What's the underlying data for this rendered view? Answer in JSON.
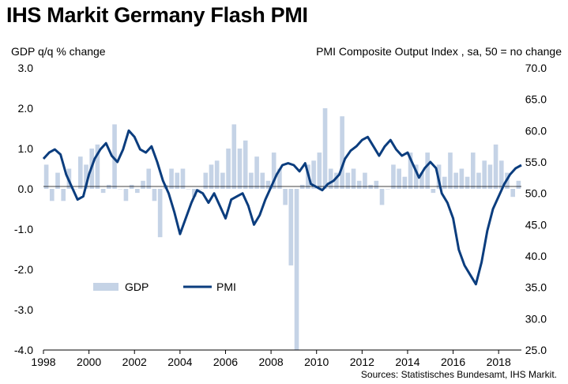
{
  "title": "IHS Markit Germany Flash PMI",
  "left_axis_label": "GDP q/q % change",
  "right_axis_label": "PMI Composite Output Index , sa, 50 = no change",
  "source": "Sources: Statistisches Bundesamt, IHS Markit.",
  "colors": {
    "gdp_bar": "#c5d3e6",
    "pmi_line": "#0b3d7e"
  },
  "chart_data": {
    "type": "bar+line",
    "legend": [
      "GDP",
      "PMI"
    ],
    "legend_position": "bottom-left",
    "grid": false,
    "x_ticks": [
      "1998",
      "2000",
      "2002",
      "2004",
      "2006",
      "2008",
      "2010",
      "2012",
      "2014",
      "2016",
      "2018"
    ],
    "y_left_ticks": [
      "3.0",
      "2.0",
      "1.0",
      "0.0",
      "-1.0",
      "-2.0",
      "-3.0",
      "-4.0"
    ],
    "y_left_range": [
      -4.0,
      3.0
    ],
    "y_right_ticks": [
      "70.0",
      "65.0",
      "60.0",
      "55.0",
      "50.0",
      "45.0",
      "40.0",
      "35.0",
      "30.0",
      "25.0"
    ],
    "y_right_range": [
      25.0,
      70.0
    ],
    "x_range": [
      1998.0,
      2019.0
    ],
    "series": [
      {
        "name": "GDP",
        "type": "bar",
        "axis": "left",
        "points": [
          [
            1998.0,
            0.6
          ],
          [
            1998.25,
            -0.3
          ],
          [
            1998.5,
            0.4
          ],
          [
            1998.75,
            -0.3
          ],
          [
            1999.0,
            0.5
          ],
          [
            1999.25,
            0.0
          ],
          [
            1999.5,
            0.8
          ],
          [
            1999.75,
            0.6
          ],
          [
            2000.0,
            1.0
          ],
          [
            2000.25,
            1.1
          ],
          [
            2000.5,
            -0.1
          ],
          [
            2000.75,
            0.1
          ],
          [
            2001.0,
            1.6
          ],
          [
            2001.25,
            0.0
          ],
          [
            2001.5,
            -0.3
          ],
          [
            2001.75,
            0.1
          ],
          [
            2002.0,
            -0.1
          ],
          [
            2002.25,
            0.2
          ],
          [
            2002.5,
            0.5
          ],
          [
            2002.75,
            -0.3
          ],
          [
            2003.0,
            -1.2
          ],
          [
            2003.25,
            0.1
          ],
          [
            2003.5,
            0.5
          ],
          [
            2003.75,
            0.4
          ],
          [
            2004.0,
            0.5
          ],
          [
            2004.25,
            0.0
          ],
          [
            2004.5,
            -0.2
          ],
          [
            2004.75,
            0.0
          ],
          [
            2005.0,
            0.4
          ],
          [
            2005.25,
            0.6
          ],
          [
            2005.5,
            0.7
          ],
          [
            2005.75,
            0.4
          ],
          [
            2006.0,
            1.0
          ],
          [
            2006.25,
            1.6
          ],
          [
            2006.5,
            1.0
          ],
          [
            2006.75,
            1.2
          ],
          [
            2007.0,
            0.4
          ],
          [
            2007.25,
            0.8
          ],
          [
            2007.5,
            0.4
          ],
          [
            2007.75,
            0.2
          ],
          [
            2008.0,
            0.9
          ],
          [
            2008.25,
            0.5
          ],
          [
            2008.5,
            -0.4
          ],
          [
            2008.75,
            -1.9
          ],
          [
            2009.0,
            -4.0
          ],
          [
            2009.25,
            0.1
          ],
          [
            2009.5,
            0.6
          ],
          [
            2009.75,
            0.7
          ],
          [
            2010.0,
            0.9
          ],
          [
            2010.25,
            2.0
          ],
          [
            2010.5,
            0.5
          ],
          [
            2010.75,
            0.4
          ],
          [
            2011.0,
            1.8
          ],
          [
            2011.25,
            0.4
          ],
          [
            2011.5,
            0.5
          ],
          [
            2011.75,
            0.2
          ],
          [
            2012.0,
            0.4
          ],
          [
            2012.25,
            0.1
          ],
          [
            2012.5,
            0.2
          ],
          [
            2012.75,
            -0.4
          ],
          [
            2013.0,
            0.0
          ],
          [
            2013.25,
            0.6
          ],
          [
            2013.5,
            0.5
          ],
          [
            2013.75,
            0.3
          ],
          [
            2014.0,
            0.9
          ],
          [
            2014.25,
            0.6
          ],
          [
            2014.5,
            0.4
          ],
          [
            2014.75,
            0.9
          ],
          [
            2015.0,
            -0.1
          ],
          [
            2015.25,
            0.6
          ],
          [
            2015.5,
            0.3
          ],
          [
            2015.75,
            0.9
          ],
          [
            2016.0,
            0.4
          ],
          [
            2016.25,
            0.5
          ],
          [
            2016.5,
            0.3
          ],
          [
            2016.75,
            0.9
          ],
          [
            2017.0,
            0.4
          ],
          [
            2017.25,
            0.7
          ],
          [
            2017.5,
            0.6
          ],
          [
            2017.75,
            1.1
          ],
          [
            2018.0,
            0.7
          ],
          [
            2018.25,
            0.4
          ],
          [
            2018.5,
            -0.2
          ],
          [
            2018.75,
            0.2
          ]
        ]
      },
      {
        "name": "PMI",
        "type": "line",
        "axis": "right",
        "points": [
          [
            1998.0,
            55.5
          ],
          [
            1998.25,
            56.5
          ],
          [
            1998.5,
            57.0
          ],
          [
            1998.75,
            56.2
          ],
          [
            1999.0,
            53.0
          ],
          [
            1999.25,
            51.0
          ],
          [
            1999.5,
            49.0
          ],
          [
            1999.75,
            49.5
          ],
          [
            2000.0,
            53.0
          ],
          [
            2000.25,
            55.5
          ],
          [
            2000.5,
            57.0
          ],
          [
            2000.75,
            58.0
          ],
          [
            2001.0,
            56.0
          ],
          [
            2001.25,
            55.0
          ],
          [
            2001.5,
            57.0
          ],
          [
            2001.75,
            60.0
          ],
          [
            2002.0,
            59.0
          ],
          [
            2002.25,
            57.0
          ],
          [
            2002.5,
            56.5
          ],
          [
            2002.75,
            57.5
          ],
          [
            2003.0,
            55.0
          ],
          [
            2003.25,
            52.0
          ],
          [
            2003.5,
            50.0
          ],
          [
            2003.75,
            47.0
          ],
          [
            2004.0,
            43.5
          ],
          [
            2004.25,
            46.0
          ],
          [
            2004.5,
            48.5
          ],
          [
            2004.75,
            50.5
          ],
          [
            2005.0,
            50.0
          ],
          [
            2005.25,
            48.5
          ],
          [
            2005.5,
            50.0
          ],
          [
            2005.75,
            48.0
          ],
          [
            2006.0,
            46.0
          ],
          [
            2006.25,
            49.0
          ],
          [
            2006.5,
            49.5
          ],
          [
            2006.75,
            50.0
          ],
          [
            2007.0,
            48.0
          ],
          [
            2007.25,
            45.0
          ],
          [
            2007.5,
            46.5
          ],
          [
            2007.75,
            49.0
          ],
          [
            2008.0,
            51.0
          ],
          [
            2008.25,
            53.0
          ],
          [
            2008.5,
            54.5
          ],
          [
            2008.75,
            54.8
          ],
          [
            2009.0,
            54.5
          ],
          [
            2009.25,
            53.5
          ],
          [
            2009.5,
            54.8
          ],
          [
            2009.75,
            51.5
          ],
          [
            2010.0,
            51.0
          ],
          [
            2010.25,
            50.5
          ],
          [
            2010.5,
            51.5
          ],
          [
            2010.75,
            52.0
          ],
          [
            2011.0,
            53.0
          ],
          [
            2011.25,
            55.5
          ],
          [
            2011.5,
            56.8
          ],
          [
            2011.75,
            57.5
          ],
          [
            2012.0,
            58.5
          ],
          [
            2012.25,
            59.0
          ],
          [
            2012.5,
            57.5
          ],
          [
            2012.75,
            56.0
          ],
          [
            2013.0,
            57.5
          ],
          [
            2013.25,
            58.5
          ],
          [
            2013.5,
            57.0
          ],
          [
            2013.75,
            56.0
          ],
          [
            2014.0,
            56.5
          ],
          [
            2014.25,
            54.5
          ],
          [
            2014.5,
            52.5
          ],
          [
            2014.75,
            54.0
          ],
          [
            2015.0,
            55.0
          ],
          [
            2015.25,
            54.0
          ],
          [
            2015.5,
            50.0
          ],
          [
            2015.75,
            48.5
          ],
          [
            2016.0,
            46.0
          ],
          [
            2016.25,
            41.0
          ],
          [
            2016.5,
            38.5
          ],
          [
            2016.75,
            37.0
          ],
          [
            2017.0,
            35.5
          ],
          [
            2017.25,
            39.0
          ],
          [
            2017.5,
            44.0
          ],
          [
            2017.75,
            47.5
          ],
          [
            2018.0,
            49.5
          ],
          [
            2018.25,
            51.5
          ],
          [
            2018.5,
            53.0
          ],
          [
            2018.75,
            54.0
          ],
          [
            2019.0,
            54.5
          ]
        ]
      }
    ]
  }
}
